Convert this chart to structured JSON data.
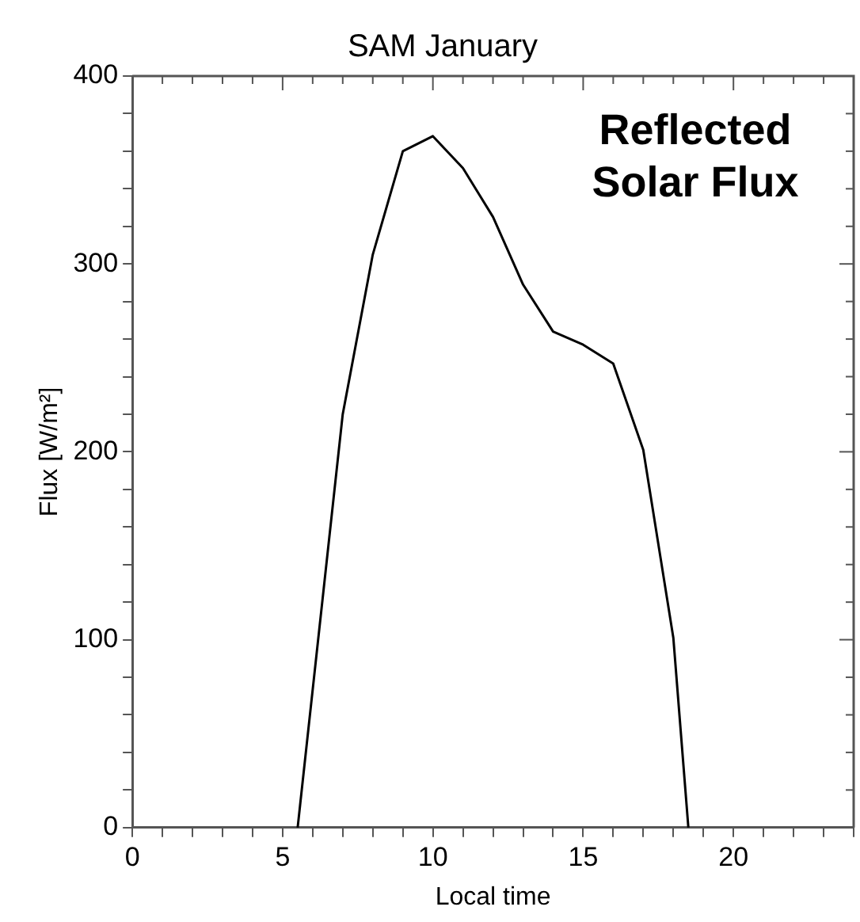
{
  "chart_data": {
    "type": "line",
    "title": "SAM January",
    "xlabel": "Local time",
    "ylabel": "Flux [W/m²]",
    "annotations": [
      "Reflected Solar Flux"
    ],
    "x": [
      5.5,
      7,
      8,
      9,
      10,
      11,
      12,
      13,
      14,
      15,
      16,
      17,
      18,
      18.5
    ],
    "series": [
      {
        "color": "#000000",
        "values": [
          0,
          220,
          305,
          360,
          368,
          351,
          325,
          289,
          264,
          257,
          247,
          201,
          101,
          0
        ]
      }
    ],
    "xlim": [
      0,
      24
    ],
    "xticks": [
      0,
      {
        "value": 1,
        "label": null
      },
      {
        "value": 2,
        "label": null
      },
      {
        "value": 3,
        "label": null
      },
      {
        "value": 4,
        "label": null
      },
      5,
      {
        "value": 6,
        "label": null
      },
      {
        "value": 7,
        "label": null
      },
      {
        "value": 8,
        "label": null
      },
      {
        "value": 9,
        "label": null
      },
      10,
      {
        "value": 11,
        "label": null
      },
      {
        "value": 12,
        "label": null
      },
      {
        "value": 13,
        "label": null
      },
      {
        "value": 14,
        "label": null
      },
      15,
      {
        "value": 16,
        "label": null
      },
      {
        "value": 17,
        "label": null
      },
      {
        "value": 18,
        "label": null
      },
      {
        "value": 19,
        "label": null
      },
      20,
      {
        "value": 21,
        "label": null
      },
      {
        "value": 22,
        "label": null
      },
      {
        "value": 23,
        "label": null
      },
      {
        "value": 24,
        "label": null
      }
    ],
    "ylim": [
      0,
      400
    ],
    "yticks": [
      0,
      {
        "value": 20,
        "label": null
      },
      {
        "value": 40,
        "label": null
      },
      {
        "value": 60,
        "label": null
      },
      {
        "value": 80,
        "label": null
      },
      100,
      {
        "value": 120,
        "label": null
      },
      {
        "value": 140,
        "label": null
      },
      {
        "value": 160,
        "label": null
      },
      {
        "value": 180,
        "label": null
      },
      200,
      {
        "value": 220,
        "label": null
      },
      {
        "value": 240,
        "label": null
      },
      {
        "value": 260,
        "label": null
      },
      {
        "value": 280,
        "label": null
      },
      300,
      {
        "value": 320,
        "label": null
      },
      {
        "value": 340,
        "label": null
      },
      {
        "value": 360,
        "label": null
      },
      {
        "value": 380,
        "label": null
      },
      400
    ],
    "grid": false,
    "legend": false,
    "marker": "none",
    "line_style": "solid"
  }
}
